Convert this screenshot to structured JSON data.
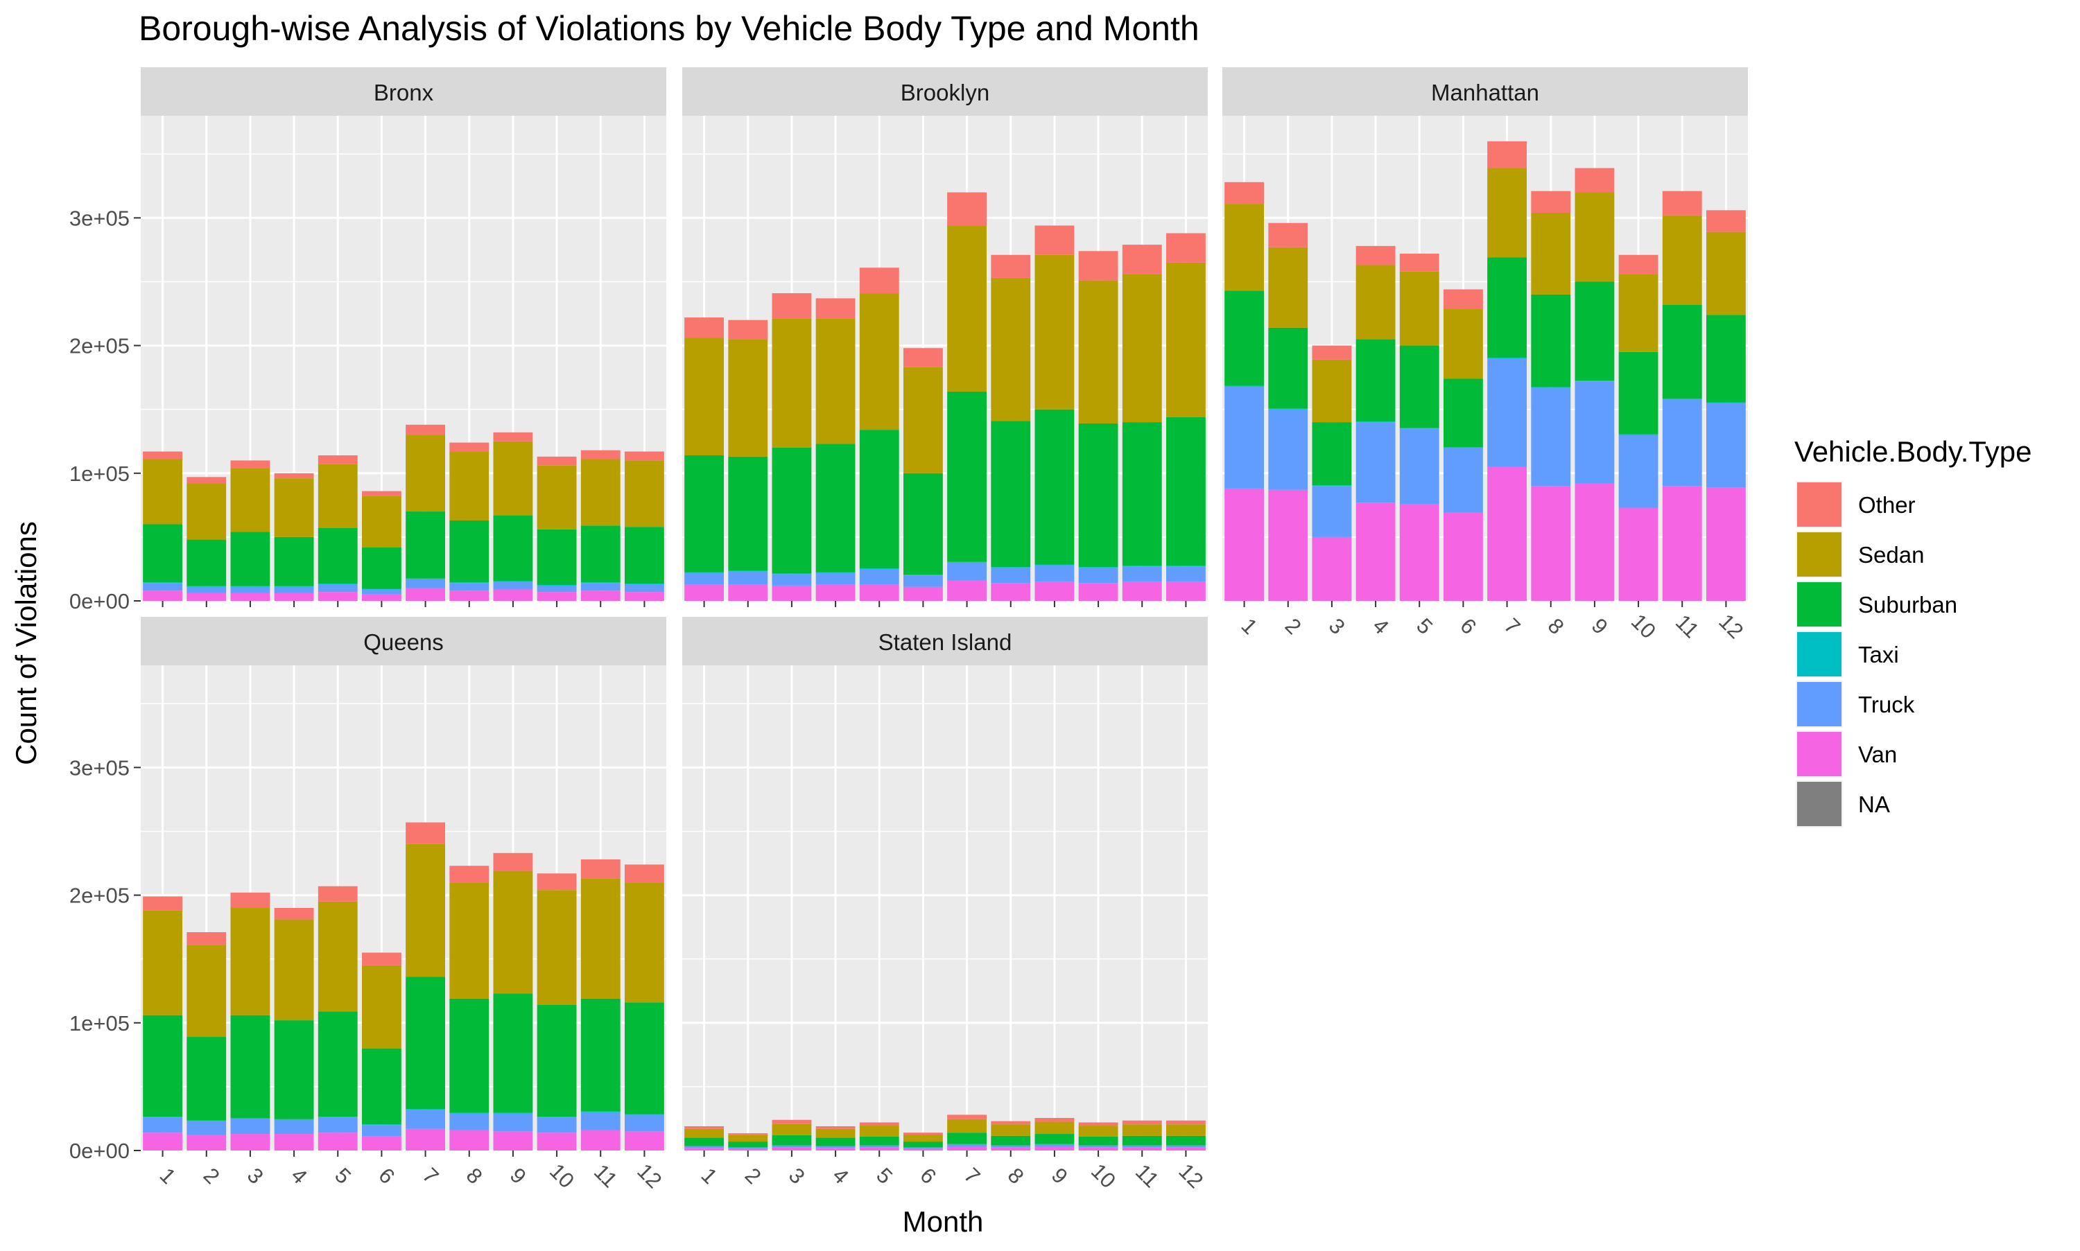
{
  "chart_data": {
    "type": "bar",
    "stacked": true,
    "faceted": true,
    "title": "Borough-wise Analysis of Violations by Vehicle Body Type and Month",
    "xlabel": "Month",
    "ylabel": "Count of Violations",
    "ylim": [
      0,
      380000
    ],
    "yticks": [
      0,
      100000,
      200000,
      300000
    ],
    "ytick_labels": [
      "0e+00",
      "1e+05",
      "2e+05",
      "3e+05"
    ],
    "categories": [
      "1",
      "2",
      "3",
      "4",
      "5",
      "6",
      "7",
      "8",
      "9",
      "10",
      "11",
      "12"
    ],
    "grid": true,
    "legend": {
      "title": "Vehicle.Body.Type",
      "position": "right",
      "entries": [
        {
          "name": "Other",
          "color": "#F8766D"
        },
        {
          "name": "Sedan",
          "color": "#B79F00"
        },
        {
          "name": "Suburban",
          "color": "#00BA38"
        },
        {
          "name": "Taxi",
          "color": "#00BFC4"
        },
        {
          "name": "Truck",
          "color": "#619CFF"
        },
        {
          "name": "Van",
          "color": "#F564E3"
        },
        {
          "name": "NA",
          "color": "#7F7F7F"
        }
      ]
    },
    "stack_order": [
      "Van",
      "Truck",
      "Taxi",
      "Suburban",
      "Sedan",
      "Other"
    ],
    "panels": [
      {
        "name": "Bronx",
        "series": [
          {
            "name": "Van",
            "values": [
              8000,
              6000,
              6000,
              6000,
              7000,
              5000,
              10000,
              8000,
              9000,
              7000,
              8000,
              7000
            ]
          },
          {
            "name": "Truck",
            "values": [
              6000,
              5000,
              5000,
              5000,
              6000,
              4000,
              7000,
              6000,
              6000,
              5000,
              6000,
              6000
            ]
          },
          {
            "name": "Taxi",
            "values": [
              500,
              500,
              500,
              500,
              500,
              500,
              500,
              500,
              500,
              500,
              500,
              500
            ]
          },
          {
            "name": "Suburban",
            "values": [
              45500,
              36500,
              42500,
              38500,
              43500,
              32500,
              52500,
              48500,
              51500,
              43500,
              44500,
              44500
            ]
          },
          {
            "name": "Sedan",
            "values": [
              51000,
              44000,
              50000,
              46000,
              50000,
              40000,
              60000,
              54000,
              58000,
              50000,
              52000,
              52000
            ]
          },
          {
            "name": "Other",
            "values": [
              6000,
              5000,
              6000,
              4000,
              7000,
              4000,
              8000,
              7000,
              7000,
              7000,
              7000,
              7000
            ]
          }
        ]
      },
      {
        "name": "Brooklyn",
        "series": [
          {
            "name": "Van",
            "values": [
              13000,
              13000,
              12000,
              13000,
              13000,
              11000,
              16000,
              14000,
              15000,
              14000,
              15000,
              15000
            ]
          },
          {
            "name": "Truck",
            "values": [
              9000,
              10000,
              9000,
              9000,
              12000,
              9000,
              14000,
              12000,
              13000,
              12000,
              12000,
              12000
            ]
          },
          {
            "name": "Taxi",
            "values": [
              500,
              500,
              500,
              500,
              500,
              500,
              500,
              500,
              500,
              500,
              500,
              500
            ]
          },
          {
            "name": "Suburban",
            "values": [
              91500,
              89500,
              98500,
              100500,
              108500,
              79500,
              133500,
              114500,
              121500,
              112500,
              112500,
              116500
            ]
          },
          {
            "name": "Sedan",
            "values": [
              92000,
              92000,
              101000,
              98000,
              107000,
              83000,
              130000,
              112000,
              121000,
              112000,
              116000,
              121000
            ]
          },
          {
            "name": "Other",
            "values": [
              16000,
              15000,
              20000,
              16000,
              20000,
              15000,
              26000,
              18000,
              23000,
              23000,
              23000,
              23000
            ]
          }
        ]
      },
      {
        "name": "Manhattan",
        "series": [
          {
            "name": "Van",
            "values": [
              88000,
              87000,
              50000,
              77000,
              76000,
              69000,
              105000,
              90000,
              92000,
              73000,
              90000,
              89000
            ]
          },
          {
            "name": "Truck",
            "values": [
              80000,
              63000,
              40000,
              63000,
              59000,
              51000,
              85000,
              77000,
              80000,
              57000,
              68000,
              66000
            ]
          },
          {
            "name": "Taxi",
            "values": [
              500,
              500,
              500,
              500,
              500,
              500,
              500,
              500,
              500,
              500,
              500,
              500
            ]
          },
          {
            "name": "Suburban",
            "values": [
              74500,
              63500,
              49500,
              64500,
              64500,
              53500,
              78500,
              72500,
              77500,
              64500,
              73500,
              68500
            ]
          },
          {
            "name": "Sedan",
            "values": [
              68000,
              63000,
              49000,
              58000,
              58000,
              55000,
              70000,
              64000,
              70000,
              61000,
              70000,
              65000
            ]
          },
          {
            "name": "Other",
            "values": [
              17000,
              19000,
              11000,
              15000,
              14000,
              15000,
              21000,
              17000,
              19000,
              15000,
              19000,
              17000
            ]
          }
        ]
      },
      {
        "name": "Queens",
        "series": [
          {
            "name": "Van",
            "values": [
              14000,
              12000,
              13000,
              13000,
              14000,
              11000,
              17000,
              16000,
              15000,
              14000,
              16000,
              15000
            ]
          },
          {
            "name": "Truck",
            "values": [
              12000,
              11000,
              12000,
              11000,
              12000,
              9000,
              15000,
              13000,
              14000,
              12000,
              14000,
              13000
            ]
          },
          {
            "name": "Taxi",
            "values": [
              500,
              500,
              500,
              500,
              500,
              500,
              500,
              500,
              500,
              500,
              500,
              500
            ]
          },
          {
            "name": "Suburban",
            "values": [
              79500,
              65500,
              80500,
              77500,
              82500,
              59500,
              103500,
              89500,
              93500,
              87500,
              88500,
              87500
            ]
          },
          {
            "name": "Sedan",
            "values": [
              82000,
              72000,
              84000,
              79000,
              86000,
              65000,
              104000,
              91000,
              96000,
              90000,
              94000,
              94000
            ]
          },
          {
            "name": "Other",
            "values": [
              11000,
              10000,
              12000,
              9000,
              12000,
              10000,
              17000,
              13000,
              14000,
              13000,
              15000,
              14000
            ]
          }
        ]
      },
      {
        "name": "Staten Island",
        "series": [
          {
            "name": "Van",
            "values": [
              2000,
              1500,
              2500,
              2000,
              2500,
              1500,
              3000,
              2500,
              3000,
              2500,
              2500,
              2500
            ]
          },
          {
            "name": "Truck",
            "values": [
              1500,
              1000,
              1500,
              1500,
              1500,
              1000,
              2000,
              1500,
              2000,
              1500,
              1500,
              1500
            ]
          },
          {
            "name": "Taxi",
            "values": [
              0,
              0,
              0,
              0,
              0,
              0,
              0,
              0,
              0,
              0,
              0,
              0
            ]
          },
          {
            "name": "Suburban",
            "values": [
              6500,
              4500,
              8000,
              6500,
              7000,
              4500,
              9000,
              7500,
              8000,
              7000,
              7500,
              7500
            ]
          },
          {
            "name": "Sedan",
            "values": [
              7000,
              5000,
              9000,
              7000,
              8500,
              5500,
              10500,
              9000,
              9500,
              8500,
              9000,
              9000
            ]
          },
          {
            "name": "Other",
            "values": [
              2000,
              1500,
              3000,
              2000,
              2500,
              1500,
              3500,
              2500,
              3000,
              2500,
              3000,
              3000
            ]
          }
        ]
      }
    ]
  }
}
